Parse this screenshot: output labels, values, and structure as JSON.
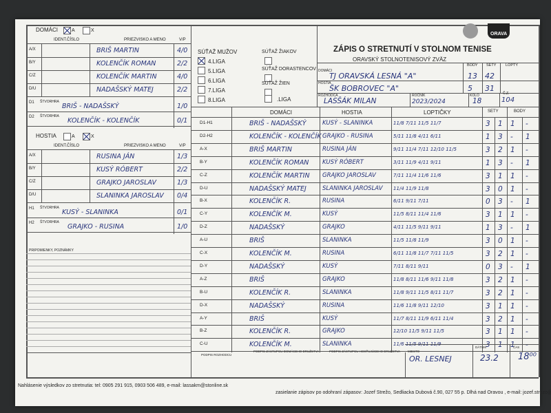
{
  "header": {
    "title": "ZÁPIS O STRETNUTÍ V STOLNOM TENISE",
    "subtitle": "ORAVSKÝ STOLNOTENISOVÝ ZVÄZ",
    "logo": "ORAVA"
  },
  "home": {
    "label": "DOMÁCI",
    "a": "A",
    "x": "X",
    "col_id": "IDENT.ČÍSLO",
    "col_name": "PRIEZVISKO A MENO",
    "col_vp": "V/P",
    "players": [
      {
        "pos": "A/X",
        "name": "BRIŠ MARTIN",
        "vp": "4/0"
      },
      {
        "pos": "B/Y",
        "name": "KOLENČÍK ROMAN",
        "vp": "2/2"
      },
      {
        "pos": "C/Z",
        "name": "KOLENČÍK MARTIN",
        "vp": "4/0"
      },
      {
        "pos": "D/U",
        "name": "NADAŠSKÝ MATEJ",
        "vp": "2/2"
      }
    ],
    "doubles_label": "ŠTVORHRA",
    "doubles": [
      {
        "pos": "D1",
        "name": "BRIŠ - NADAŠSKÝ",
        "vp": "1/0"
      },
      {
        "pos": "D2",
        "name": "KOLENČÍK - KOLENČÍK",
        "vp": "0/1"
      }
    ]
  },
  "guest": {
    "label": "HOSTIA",
    "a": "A",
    "x": "X",
    "col_id": "IDENT.ČÍSLO",
    "col_name": "PRIEZVISKO A MENO",
    "col_vp": "V/P",
    "players": [
      {
        "pos": "A/X",
        "name": "RUSINA JÁN",
        "vp": "1/3"
      },
      {
        "pos": "B/Y",
        "name": "KUSÝ RÓBERT",
        "vp": "2/2"
      },
      {
        "pos": "C/Z",
        "name": "GRAJKO JAROSLAV",
        "vp": "1/3"
      },
      {
        "pos": "D/U",
        "name": "SLANINKA JAROSLAV",
        "vp": "0/4"
      }
    ],
    "doubles_label": "ŠTVORHRA",
    "doubles": [
      {
        "pos": "H1",
        "name": "KUSÝ - SLANINKA",
        "vp": "0/1"
      },
      {
        "pos": "H2",
        "name": "GRAJKO - RUSINA",
        "vp": "1/0"
      }
    ]
  },
  "notes_label": "PRIPOMIENKY, POZNÁMKY",
  "competitions": {
    "men_title": "SÚŤAŽ MUŽOV",
    "men": [
      "4.LIGA",
      "5.LIGA",
      "6.LIGA",
      "7.LIGA",
      "8.LIGA"
    ],
    "others": [
      "SÚŤAŽ ŽIAKOV",
      "SÚŤAŽ DORASTENCOV",
      "SÚŤAŽ ŽIEN",
      ".LIGA"
    ]
  },
  "summary": {
    "headers": [
      "BODY",
      "SETY",
      "LOPTY"
    ],
    "home_label": "DOMÁCI",
    "home_team": "TJ ORAVSKÁ LESNÁ \"A\"",
    "home_points": 13,
    "home_sets": 42,
    "guest_label": "HOSTIA",
    "guest_team": "ŠK BOBROVEC \"A\"",
    "guest_points": 5,
    "guest_sets": 31,
    "referee_label": "ROZHODCA",
    "referee": "LASŠÁK MILAN",
    "season_label": "ROČNÍK",
    "season": "2023/2024",
    "round_label": "KOLO",
    "round": 18,
    "no_label": "Č.Z.",
    "no": 104
  },
  "matches": {
    "headers": [
      "DOMÁCI",
      "HOSTIA",
      "LOPTIČKY",
      "SETY",
      "BODY"
    ],
    "rows": [
      [
        "D1-H1",
        "BRIŠ - NADAŠSKÝ",
        "KUSÝ - SLANINKA",
        "11/8 7/11 11/5 11/7",
        3,
        1,
        "1",
        "-"
      ],
      [
        "D2-H2",
        "KOLENČÍK - KOLENČÍK",
        "GRAJKO - RUSINA",
        "5/11 11/8 4/11 6/11",
        1,
        3,
        "-",
        "1"
      ],
      [
        "A-X",
        "BRIŠ MARTIN",
        "RUSINA JÁN",
        "9/11 11/4 7/11 12/10 11/5",
        3,
        2,
        "1",
        "-"
      ],
      [
        "B-Y",
        "KOLENČÍK ROMAN",
        "KUSÝ RÓBERT",
        "3/11 11/9 4/11 9/11",
        1,
        3,
        "-",
        "1"
      ],
      [
        "C-Z",
        "KOLENČÍK MARTIN",
        "GRAJKO JAROSLAV",
        "7/11 11/4 11/6 11/6",
        3,
        1,
        "1",
        "-"
      ],
      [
        "D-U",
        "NADAŠSKÝ MATEJ",
        "SLANINKA JAROSLAV",
        "11/4 11/9 11/8",
        3,
        0,
        "1",
        "-"
      ],
      [
        "B-X",
        "KOLENČÍK R.",
        "RUSINA",
        "6/11 9/11 7/11",
        0,
        3,
        "-",
        "1"
      ],
      [
        "C-Y",
        "KOLENČÍK M.",
        "KUSÝ",
        "11/5 8/11 11/4 11/6",
        3,
        1,
        "1",
        "-"
      ],
      [
        "D-Z",
        "NADAŠSKÝ",
        "GRAJKO",
        "4/11 11/5 9/11 9/11",
        1,
        3,
        "-",
        "1"
      ],
      [
        "A-U",
        "BRIŠ",
        "SLANINKA",
        "11/5 11/8 11/9",
        3,
        0,
        "1",
        "-"
      ],
      [
        "C-X",
        "KOLENČÍK M.",
        "RUSINA",
        "6/11 11/8 11/7 7/11 11/5",
        3,
        2,
        "1",
        "-"
      ],
      [
        "D-Y",
        "NADAŠSKÝ",
        "KUSÝ",
        "7/11 8/11 9/11",
        0,
        3,
        "-",
        "1"
      ],
      [
        "A-Z",
        "BRIŠ",
        "GRAJKO",
        "11/8 8/11 11/6 9/11 11/8",
        3,
        2,
        "1",
        "-"
      ],
      [
        "B-U",
        "KOLENČÍK R.",
        "SLANINKA",
        "11/8 9/11 11/5 8/11 11/7",
        3,
        2,
        "1",
        "-"
      ],
      [
        "D-X",
        "NADAŠSKÝ",
        "RUSINA",
        "11/6 11/8 9/11 12/10",
        3,
        1,
        "1",
        "-"
      ],
      [
        "A-Y",
        "BRIŠ",
        "KUSÝ",
        "11/7 8/11 11/9 6/11 11/4",
        3,
        2,
        "1",
        "-"
      ],
      [
        "B-Z",
        "KOLENČÍK R.",
        "GRAJKO",
        "12/10 11/5 9/11 11/5",
        3,
        1,
        "1",
        "-"
      ],
      [
        "C-U",
        "KOLENČÍK M.",
        "SLANINKA",
        "11/6 11/5 9/11 11/9",
        3,
        1,
        "1",
        "-"
      ]
    ]
  },
  "bottom": {
    "sign_referee": "PODPIS ROZHODCU",
    "sign_home": "PODPIS ZÁSTUPCU DOMÁCEHO DRUŽSTVA",
    "sign_guest": "PODPIS ZÁSTUPCU HOSŤUJÚCEHO DRUŽSTVA",
    "place_label": "MIESTO",
    "place": "OR. LESNEJ",
    "date_label": "DÁTUM",
    "date": "23.2",
    "time_label": "ČAS",
    "time": "18⁰⁰"
  },
  "footer": {
    "line1": "Nahlásenie výsledkov zo stretnutia: tel: 0905 291 915, 0903 506 489, e-mail: lassakm@stonline.sk",
    "line2": "zasielanie zápisov po odohraní zápasov: Jozef Strežo, Sedliacka Dubová č.90, 027 55 p. Dlhá nad Oravou , e-mail: jozef.strezo@zoznam.sk"
  }
}
